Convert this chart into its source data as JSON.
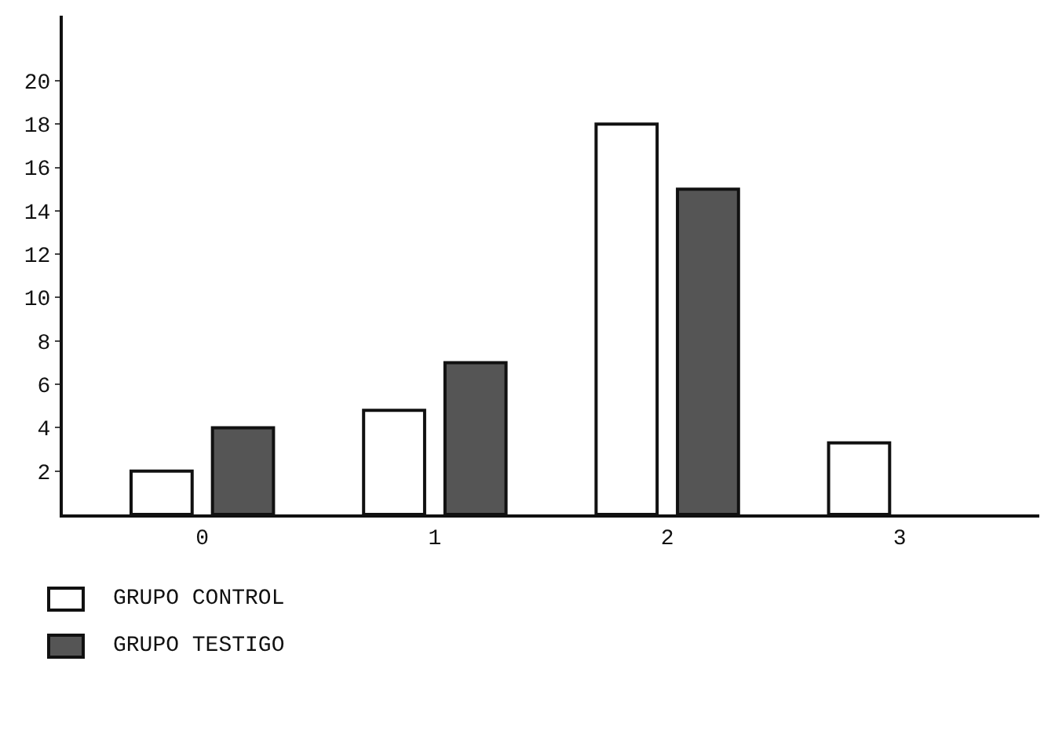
{
  "chart_data": {
    "type": "bar",
    "categories": [
      "0",
      "1",
      "2",
      "3"
    ],
    "series": [
      {
        "name": "GRUPO CONTROL",
        "color": "#ffffff",
        "values": [
          2,
          4.8,
          18,
          3.3
        ]
      },
      {
        "name": "GRUPO TESTIGO",
        "color": "#555555",
        "values": [
          4,
          7,
          15,
          null
        ]
      }
    ],
    "ylim": [
      0,
      23
    ],
    "yticks": [
      2,
      4,
      6,
      8,
      10,
      12,
      14,
      16,
      18,
      20
    ],
    "grid": false,
    "legend": "bottom left"
  }
}
